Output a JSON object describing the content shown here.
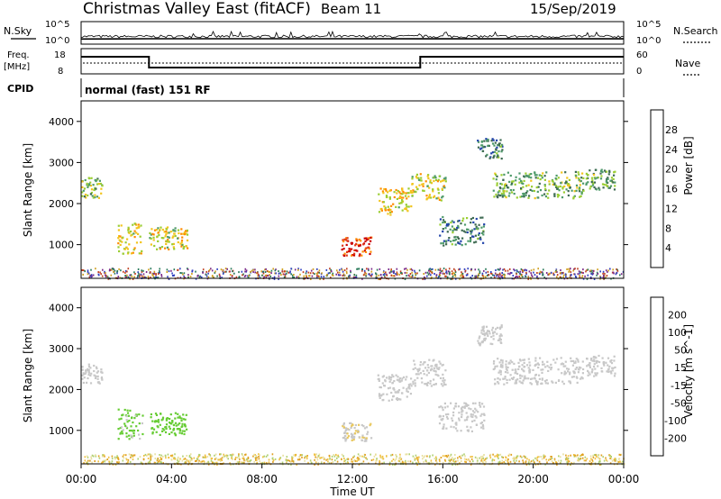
{
  "header": {
    "title": "Christmas Valley East (fitACF)",
    "beam": "Beam 11",
    "date": "15/Sep/2019"
  },
  "sky_panel": {
    "left_label": "N.Sky",
    "right_label": "N.Search",
    "left_ticks": [
      "10^5",
      "10^0"
    ],
    "right_ticks": [
      "10^5",
      "10^0"
    ]
  },
  "freq_panel": {
    "left_label_1": "Freq.",
    "left_label_2": "[MHz]",
    "right_label": "Nave",
    "left_ticks": [
      "18",
      "8"
    ],
    "right_ticks": [
      "60",
      "0"
    ],
    "cpid_label": "CPID",
    "mode_text": "normal (fast) 151 RF"
  },
  "colors": {
    "power": [
      "#1a1aff",
      "#2244aa",
      "#3e6a52",
      "#4e9a6a",
      "#9acd32",
      "#f2c41c",
      "#ff8c00",
      "#e03818",
      "#cc0000"
    ],
    "velocity": [
      "#ee1111",
      "#ff6600",
      "#ff9900",
      "#e8c860",
      "#c8c8c8",
      "#66cc33",
      "#3a8f5a",
      "#2a4aa0",
      "#1a1acc"
    ],
    "noise_band_power": [
      "#3040c0",
      "#7a2a8a",
      "#c04020",
      "#2a7a5a",
      "#d0a020"
    ],
    "noise_band_velocity": [
      "#e0a020",
      "#f0c040",
      "#b0d070",
      "#e8e0a0"
    ]
  },
  "chart_data": [
    {
      "type": "line",
      "panel": "sky-noise",
      "x": [
        "00:00",
        "03:00",
        "06:00",
        "09:00",
        "12:00",
        "15:00",
        "18:00",
        "21:00",
        "24:00"
      ],
      "series": [
        {
          "values": [
            12,
            14,
            14,
            14,
            14,
            13,
            13,
            13,
            13
          ]
        }
      ],
      "ylim": [
        1,
        100000
      ],
      "yscale": "log"
    },
    {
      "type": "line",
      "panel": "frequency",
      "x": [
        "00:00",
        "03:00",
        "03:00",
        "15:00",
        "15:00",
        "24:00"
      ],
      "series": [
        {
          "values": [
            14.8,
            14.8,
            10.5,
            10.5,
            14.8,
            14.8
          ]
        }
      ],
      "ylim": [
        8,
        18
      ],
      "y2lim": [
        0,
        60
      ]
    },
    {
      "type": "heatmap",
      "panel": "power",
      "xlabel": "",
      "ylabel": "Slant Range [km]",
      "xlim": [
        0,
        24
      ],
      "ylim": [
        180,
        4500
      ],
      "yticks": [
        "1000",
        "2000",
        "3000",
        "4000"
      ],
      "colorbar": {
        "label": "Power [dB]",
        "ticks": [
          "4",
          "8",
          "12",
          "16",
          "20",
          "24",
          "28"
        ],
        "range": [
          0,
          30
        ]
      },
      "echo_regions": [
        {
          "t_start": 0.0,
          "t_end": 0.9,
          "r_min": 2150,
          "r_max": 2650,
          "value": 14
        },
        {
          "t_start": 1.6,
          "t_end": 2.7,
          "r_min": 800,
          "r_max": 1550,
          "value": 18
        },
        {
          "t_start": 3.0,
          "t_end": 4.7,
          "r_min": 900,
          "r_max": 1450,
          "value": 17
        },
        {
          "t_start": 11.5,
          "t_end": 12.8,
          "r_min": 750,
          "r_max": 1200,
          "value": 26
        },
        {
          "t_start": 13.1,
          "t_end": 14.6,
          "r_min": 1750,
          "r_max": 2400,
          "value": 18
        },
        {
          "t_start": 14.6,
          "t_end": 16.1,
          "r_min": 2100,
          "r_max": 2750,
          "value": 16
        },
        {
          "t_start": 15.8,
          "t_end": 17.8,
          "r_min": 1000,
          "r_max": 1700,
          "value": 10
        },
        {
          "t_start": 17.5,
          "t_end": 18.6,
          "r_min": 3100,
          "r_max": 3600,
          "value": 9
        },
        {
          "t_start": 18.2,
          "t_end": 22.2,
          "r_min": 2150,
          "r_max": 2800,
          "value": 13
        },
        {
          "t_start": 22.3,
          "t_end": 23.6,
          "r_min": 2350,
          "r_max": 2850,
          "value": 12
        }
      ]
    },
    {
      "type": "heatmap",
      "panel": "velocity",
      "xlabel": "Time UT",
      "ylabel": "Slant Range [km]",
      "xlim": [
        0,
        24
      ],
      "ylim": [
        180,
        4500
      ],
      "xticks": [
        "00:00",
        "04:00",
        "08:00",
        "12:00",
        "16:00",
        "20:00",
        "00:00"
      ],
      "yticks": [
        "1000",
        "2000",
        "3000",
        "4000"
      ],
      "colorbar": {
        "label": "Velocity [m s^-1]",
        "ticks": [
          "-200",
          "-100",
          "-50",
          "-15",
          "15",
          "50",
          "100",
          "200"
        ],
        "range": [
          -250,
          250
        ]
      },
      "echo_regions": [
        {
          "t_start": 0.0,
          "t_end": 0.9,
          "r_min": 2150,
          "r_max": 2650,
          "value": 0
        },
        {
          "t_start": 1.6,
          "t_end": 2.7,
          "r_min": 800,
          "r_max": 1550,
          "value": 40
        },
        {
          "t_start": 3.0,
          "t_end": 4.7,
          "r_min": 900,
          "r_max": 1450,
          "value": 60
        },
        {
          "t_start": 11.5,
          "t_end": 12.8,
          "r_min": 750,
          "r_max": 1200,
          "value": -20
        },
        {
          "t_start": 13.1,
          "t_end": 14.6,
          "r_min": 1750,
          "r_max": 2400,
          "value": 0
        },
        {
          "t_start": 14.6,
          "t_end": 16.1,
          "r_min": 2100,
          "r_max": 2750,
          "value": 0
        },
        {
          "t_start": 15.8,
          "t_end": 17.8,
          "r_min": 1000,
          "r_max": 1700,
          "value": 0
        },
        {
          "t_start": 17.5,
          "t_end": 18.6,
          "r_min": 3100,
          "r_max": 3600,
          "value": 0
        },
        {
          "t_start": 18.2,
          "t_end": 22.2,
          "r_min": 2150,
          "r_max": 2800,
          "value": 0
        },
        {
          "t_start": 22.3,
          "t_end": 23.6,
          "r_min": 2350,
          "r_max": 2850,
          "value": 0
        }
      ]
    }
  ]
}
